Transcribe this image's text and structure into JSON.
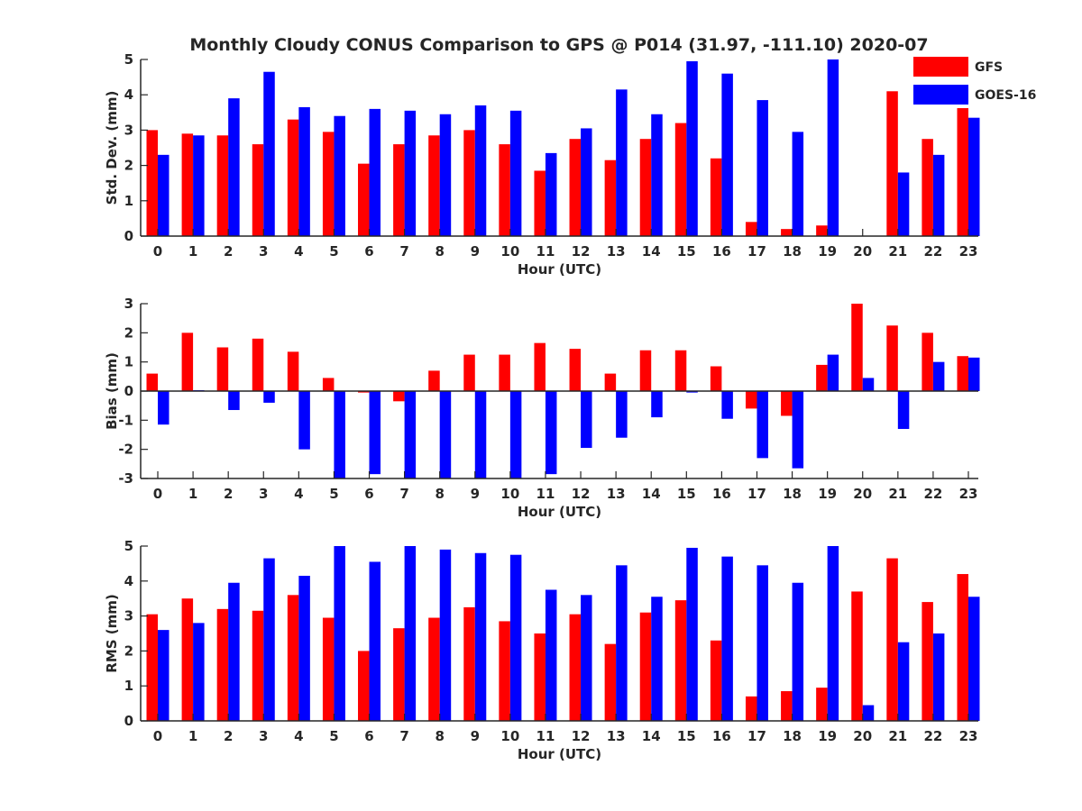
{
  "chart_data": {
    "title": "Monthly Cloudy CONUS Comparison to GPS @ P014 (31.97, -111.10) 2020-07",
    "legend": {
      "placement": "top-right",
      "entries": [
        {
          "name": "GFS",
          "color": "#ff0000"
        },
        {
          "name": "GOES-16",
          "color": "#0000ff"
        }
      ]
    },
    "panels": [
      {
        "type": "bar",
        "ylabel": "Std. Dev. (mm)",
        "xlabel": "Hour (UTC)",
        "ylim": [
          0,
          5
        ],
        "yticks": [
          0,
          1,
          2,
          3,
          4,
          5
        ],
        "categories": [
          "0",
          "1",
          "2",
          "3",
          "4",
          "5",
          "6",
          "7",
          "8",
          "9",
          "10",
          "11",
          "12",
          "13",
          "14",
          "15",
          "16",
          "17",
          "18",
          "19",
          "20",
          "21",
          "22",
          "23"
        ],
        "series": [
          {
            "name": "GFS",
            "color": "#ff0000",
            "values": [
              3.0,
              2.9,
              2.85,
              2.6,
              3.3,
              2.95,
              2.05,
              2.6,
              2.85,
              3.0,
              2.6,
              1.85,
              2.75,
              2.15,
              2.75,
              3.2,
              2.2,
              0.4,
              0.2,
              0.3,
              0,
              4.1,
              2.75,
              3.8
            ]
          },
          {
            "name": "GOES-16",
            "color": "#0000ff",
            "values": [
              2.3,
              2.85,
              3.9,
              4.65,
              3.65,
              3.4,
              3.6,
              3.55,
              3.45,
              3.7,
              3.55,
              2.35,
              3.05,
              4.15,
              3.45,
              4.95,
              4.6,
              3.85,
              2.95,
              5.0,
              0,
              1.8,
              2.3,
              3.35
            ]
          }
        ]
      },
      {
        "type": "bar",
        "ylabel": "Bias (mm)",
        "xlabel": "Hour (UTC)",
        "ylim": [
          -3,
          3
        ],
        "yticks": [
          -3,
          -2,
          -1,
          0,
          1,
          2,
          3
        ],
        "categories": [
          "0",
          "1",
          "2",
          "3",
          "4",
          "5",
          "6",
          "7",
          "8",
          "9",
          "10",
          "11",
          "12",
          "13",
          "14",
          "15",
          "16",
          "17",
          "18",
          "19",
          "20",
          "21",
          "22",
          "23"
        ],
        "series": [
          {
            "name": "GFS",
            "color": "#ff0000",
            "values": [
              0.6,
              2.0,
              1.5,
              1.8,
              1.35,
              0.45,
              -0.05,
              -0.35,
              0.7,
              1.25,
              1.25,
              1.65,
              1.45,
              0.6,
              1.4,
              1.4,
              0.85,
              -0.6,
              -0.85,
              0.9,
              3.0,
              2.25,
              2.0,
              1.2
            ]
          },
          {
            "name": "GOES-16",
            "color": "#0000ff",
            "values": [
              -1.15,
              0.03,
              -0.65,
              -0.4,
              -2.0,
              -3.0,
              -2.85,
              -3.0,
              -3.0,
              -3.0,
              -3.0,
              -2.85,
              -1.95,
              -1.6,
              -0.9,
              -0.05,
              -0.95,
              -2.3,
              -2.65,
              1.25,
              0.45,
              -1.3,
              1.0,
              1.15
            ]
          }
        ]
      },
      {
        "type": "bar",
        "ylabel": "RMS (mm)",
        "xlabel": "Hour (UTC)",
        "ylim": [
          0,
          5
        ],
        "yticks": [
          0,
          1,
          2,
          3,
          4,
          5
        ],
        "categories": [
          "0",
          "1",
          "2",
          "3",
          "4",
          "5",
          "6",
          "7",
          "8",
          "9",
          "10",
          "11",
          "12",
          "13",
          "14",
          "15",
          "16",
          "17",
          "18",
          "19",
          "20",
          "21",
          "22",
          "23"
        ],
        "series": [
          {
            "name": "GFS",
            "color": "#ff0000",
            "values": [
              3.05,
              3.5,
              3.2,
              3.15,
              3.6,
              2.95,
              2.0,
              2.65,
              2.95,
              3.25,
              2.85,
              2.5,
              3.05,
              2.2,
              3.1,
              3.45,
              2.3,
              0.7,
              0.85,
              0.95,
              3.7,
              4.65,
              3.4,
              4.2
            ]
          },
          {
            "name": "GOES-16",
            "color": "#0000ff",
            "values": [
              2.6,
              2.8,
              3.95,
              4.65,
              4.15,
              5.0,
              4.55,
              5.0,
              4.9,
              4.8,
              4.75,
              3.75,
              3.6,
              4.45,
              3.55,
              4.95,
              4.7,
              4.45,
              3.95,
              5.0,
              0.45,
              2.25,
              2.5,
              3.55
            ]
          }
        ]
      }
    ]
  }
}
